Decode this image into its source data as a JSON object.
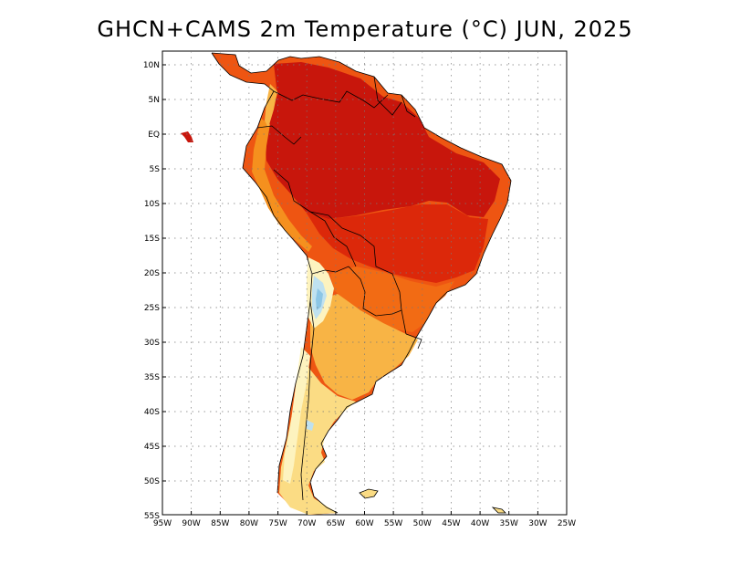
{
  "title": "GHCN+CAMS 2m Temperature (°C) JUN, 2025",
  "axes": {
    "lat_labels": [
      "10N",
      "5N",
      "EQ",
      "5S",
      "10S",
      "15S",
      "20S",
      "25S",
      "30S",
      "35S",
      "40S",
      "45S",
      "50S",
      "55S"
    ],
    "lon_labels": [
      "95W",
      "90W",
      "85W",
      "80W",
      "75W",
      "70W",
      "65W",
      "60W",
      "55W",
      "50W",
      "45W",
      "40W",
      "35W",
      "30W",
      "25W"
    ],
    "lon_range": [
      -95,
      -25
    ],
    "lat_range": [
      -55,
      12
    ],
    "grid": "dotted"
  },
  "colors": {
    "hot_dark": "#c8140a",
    "hot": "#dc2a0a",
    "warm": "#ef5a10",
    "orange": "#f5901e",
    "light_orange": "#f8b445",
    "yellow": "#fbdc84",
    "pale_yellow": "#fdf3bf",
    "cool_blue": "#bfe1f0",
    "cold_blue": "#8cc6e6",
    "border": "#000000"
  }
}
